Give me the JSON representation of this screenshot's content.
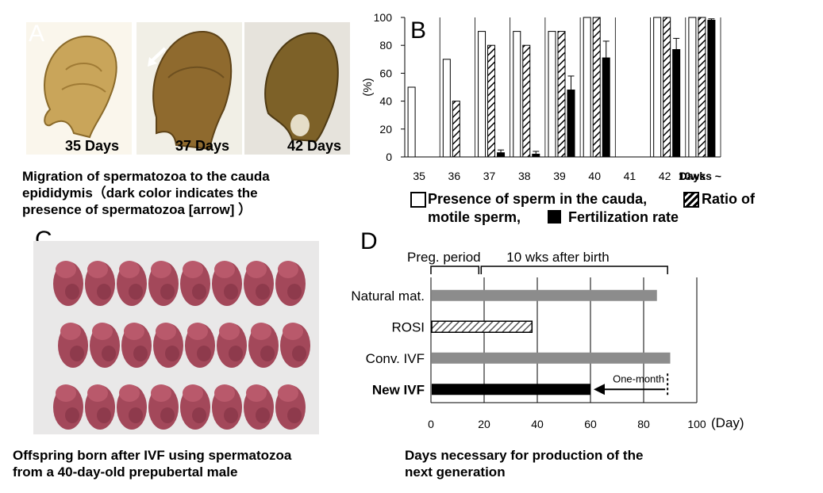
{
  "panels": {
    "a": {
      "letter": "A",
      "photos": [
        {
          "label": "35 Days"
        },
        {
          "label": "37 Days"
        },
        {
          "label": "42 Days"
        }
      ],
      "caption_lines": [
        "Migration of spermatozoa to the cauda",
        "epididymis（dark color indicates the",
        "presence of spermatozoa [arrow] ）"
      ]
    },
    "b": {
      "letter": "B"
    },
    "c": {
      "letter": "C",
      "caption_lines": [
        "Offspring born after IVF using spermatozoa",
        "from a 40-day-old prepubertal male"
      ]
    },
    "d": {
      "letter": "D",
      "caption_lines": [
        "Days necessary for production of the",
        "next generation"
      ]
    }
  },
  "colors": {
    "gray_bar": "#8c8c8c",
    "black": "#000000",
    "white": "#ffffff"
  },
  "chart_data": [
    {
      "type": "bar",
      "panel": "B",
      "ylabel": "(%)",
      "ylim": [
        0,
        100
      ],
      "yticks": [
        "0",
        "20",
        "40",
        "60",
        "80",
        "100"
      ],
      "categories": [
        "35",
        "36",
        "37",
        "38",
        "39",
        "40",
        "41",
        "42",
        "10wks ~"
      ],
      "days_label": "Days",
      "series": [
        {
          "name": "Presence of sperm in the cauda,",
          "pattern": "white",
          "values": [
            50,
            70,
            90,
            90,
            90,
            100,
            null,
            100,
            100
          ]
        },
        {
          "name": "Ratio of motile sperm,",
          "pattern": "hatched",
          "values": [
            null,
            40,
            80,
            80,
            90,
            100,
            null,
            100,
            100
          ]
        },
        {
          "name": "Fertilization rate",
          "pattern": "black",
          "values": [
            null,
            null,
            3,
            2,
            48,
            71,
            null,
            77,
            98
          ],
          "error": [
            null,
            null,
            2,
            2,
            10,
            12,
            null,
            8,
            1
          ]
        }
      ],
      "legend": {
        "line1_a": "Presence of sperm in the cauda,",
        "line1_b": "Ratio of",
        "line2_a": "motile sperm,",
        "line2_b": "Fertilization rate"
      }
    },
    {
      "type": "bar",
      "orientation": "horizontal",
      "panel": "D",
      "xlim": [
        0,
        100
      ],
      "xticks": [
        "0",
        "20",
        "40",
        "60",
        "80",
        "100"
      ],
      "xunit": "(Day)",
      "categories": [
        "Natural mat.",
        "ROSI",
        "Conv. IVF",
        "New IVF"
      ],
      "values": [
        85,
        38,
        90,
        60
      ],
      "patterns": [
        "gray",
        "hatched",
        "gray",
        "black"
      ],
      "bold_category": "New IVF",
      "annotations": {
        "preg_period": "Preg. period",
        "after_birth": "10 wks after birth",
        "one_month": "One-month",
        "preg_end": 18,
        "after_birth_end": 89
      }
    }
  ]
}
